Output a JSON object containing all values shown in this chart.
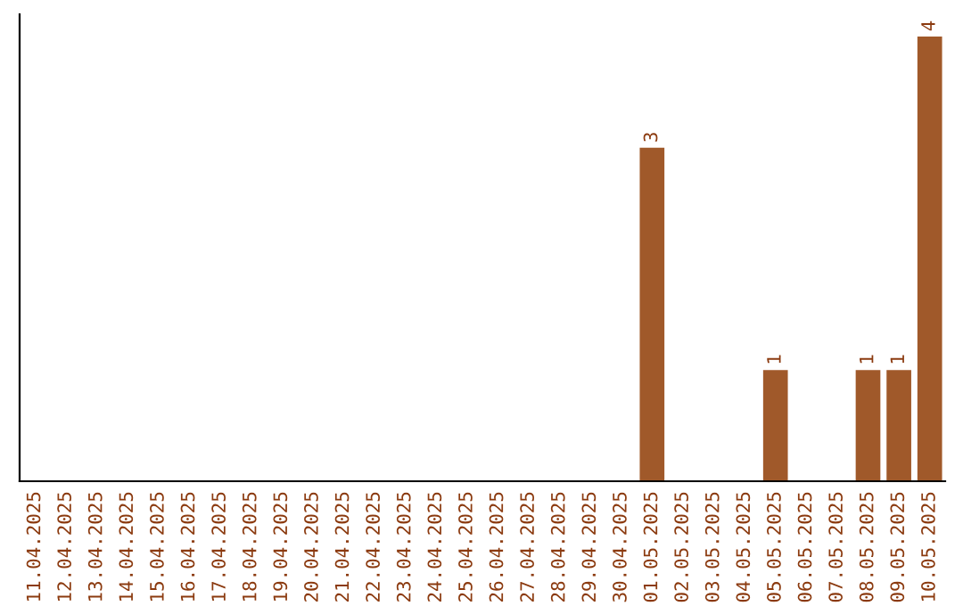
{
  "chart_data": {
    "type": "bar",
    "categories": [
      "11.04.2025",
      "12.04.2025",
      "13.04.2025",
      "14.04.2025",
      "15.04.2025",
      "16.04.2025",
      "17.04.2025",
      "18.04.2025",
      "19.04.2025",
      "20.04.2025",
      "21.04.2025",
      "22.04.2025",
      "23.04.2025",
      "24.04.2025",
      "25.04.2025",
      "26.04.2025",
      "27.04.2025",
      "28.04.2025",
      "29.04.2025",
      "30.04.2025",
      "01.05.2025",
      "02.05.2025",
      "03.05.2025",
      "04.05.2025",
      "05.05.2025",
      "06.05.2025",
      "07.05.2025",
      "08.05.2025",
      "09.05.2025",
      "10.05.2025"
    ],
    "values": [
      null,
      null,
      null,
      null,
      null,
      null,
      null,
      null,
      null,
      null,
      null,
      null,
      null,
      null,
      null,
      null,
      null,
      null,
      null,
      null,
      3,
      null,
      null,
      null,
      1,
      null,
      null,
      1,
      1,
      4
    ],
    "data_labels": true,
    "color": "#a0592a",
    "grid": false,
    "legend": false,
    "tick_labels": "x"
  }
}
